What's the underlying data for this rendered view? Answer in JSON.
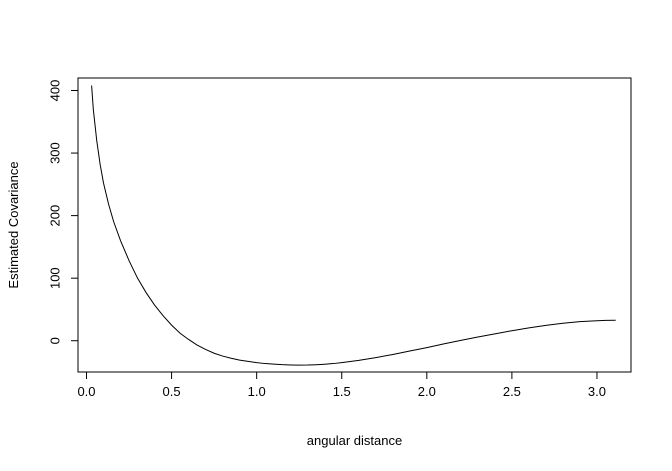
{
  "chart_data": {
    "type": "line",
    "xlabel": "angular distance",
    "ylabel": "Estimated Covariance",
    "xlim": [
      -0.05,
      3.2
    ],
    "ylim": [
      -50,
      420
    ],
    "xticks": [
      0.0,
      0.5,
      1.0,
      1.5,
      2.0,
      2.5,
      3.0
    ],
    "xtick_labels": [
      "0.0",
      "0.5",
      "1.0",
      "1.5",
      "2.0",
      "2.5",
      "3.0"
    ],
    "yticks": [
      0,
      100,
      200,
      300,
      400
    ],
    "ytick_labels": [
      "0",
      "100",
      "200",
      "300",
      "400"
    ],
    "grid": false,
    "legend": "none",
    "line_color": "#000000",
    "series": [
      {
        "x": [
          0.03,
          0.04,
          0.06,
          0.08,
          0.1,
          0.13,
          0.16,
          0.2,
          0.25,
          0.3,
          0.35,
          0.4,
          0.45,
          0.5,
          0.55,
          0.6,
          0.65,
          0.7,
          0.75,
          0.8,
          0.85,
          0.9,
          0.95,
          1.0,
          1.05,
          1.1,
          1.15,
          1.2,
          1.25,
          1.3,
          1.35,
          1.4,
          1.45,
          1.5,
          1.6,
          1.7,
          1.8,
          1.9,
          2.0,
          2.1,
          2.2,
          2.3,
          2.4,
          2.5,
          2.6,
          2.7,
          2.8,
          2.9,
          3.0,
          3.05,
          3.11
        ],
        "values": [
          408,
          370,
          320,
          282,
          252,
          218,
          190,
          160,
          128,
          100,
          77,
          57,
          40,
          25,
          12,
          2,
          -7,
          -14,
          -20,
          -24.5,
          -28,
          -31,
          -33,
          -35,
          -36.5,
          -37.5,
          -38.3,
          -38.8,
          -39,
          -38.9,
          -38.4,
          -37.6,
          -36.5,
          -35,
          -31.5,
          -27,
          -22,
          -16.5,
          -11,
          -5,
          0.5,
          6,
          11,
          16,
          20.5,
          24.5,
          28,
          30.5,
          32,
          32.5,
          32.8
        ]
      }
    ]
  }
}
